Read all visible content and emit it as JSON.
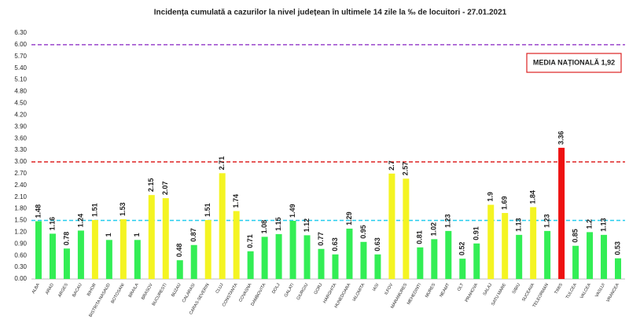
{
  "chart_data": {
    "type": "bar",
    "title": "Incidența cumulată a cazurilor la nivel județean în ultimele 14 zile la ‰ de locuitori - 27.01.2021",
    "categories": [
      "ALBA",
      "ARAD",
      "ARGES",
      "BACAU",
      "BIHOR",
      "BISTRITA NASAUD",
      "BOTOSANI",
      "BRAILA",
      "BRASOV",
      "BUCURESTI",
      "BUZAU",
      "CALARASI",
      "CARAS-SEVERIN",
      "CLUJ",
      "CONSTANTA",
      "COVASNA",
      "DAMBOVITA",
      "DOLJ",
      "GALATI",
      "GIURGIU",
      "GORJ",
      "HARGHITA",
      "HUNEDOARA",
      "IALOMITA",
      "IASI",
      "ILFOV",
      "MARAMURES",
      "MEHEDINTI",
      "MURES",
      "NEAMT",
      "OLT",
      "PRAHOVA",
      "SALAJ",
      "SATU MARE",
      "SIBIU",
      "SUCEAVA",
      "TELEORMAN",
      "TIMIS",
      "TULCEA",
      "VALCEA",
      "VASLUI",
      "VRANCEA"
    ],
    "values": [
      1.48,
      1.16,
      0.78,
      1.24,
      1.51,
      1,
      1.53,
      1,
      2.15,
      2.07,
      0.48,
      0.87,
      1.51,
      2.71,
      1.74,
      0.71,
      1.08,
      1.15,
      1.49,
      1.12,
      0.77,
      0.63,
      1.29,
      0.95,
      0.63,
      2.7,
      2.57,
      0.81,
      1.02,
      1.23,
      0.52,
      0.91,
      1.9,
      1.69,
      1.13,
      1.84,
      1.23,
      3.36,
      0.85,
      1.2,
      1.13,
      0.53
    ],
    "colors": [
      "#33ee55",
      "#33ee55",
      "#33ee55",
      "#33ee55",
      "#f4f422",
      "#33ee55",
      "#f4f422",
      "#33ee55",
      "#f4f422",
      "#f4f422",
      "#33ee55",
      "#33ee55",
      "#f4f422",
      "#f4f422",
      "#f4f422",
      "#33ee55",
      "#33ee55",
      "#33ee55",
      "#33ee55",
      "#33ee55",
      "#33ee55",
      "#33ee55",
      "#33ee55",
      "#33ee55",
      "#33ee55",
      "#f4f422",
      "#f4f422",
      "#33ee55",
      "#33ee55",
      "#33ee55",
      "#33ee55",
      "#33ee55",
      "#f4f422",
      "#f4f422",
      "#33ee55",
      "#f4f422",
      "#33ee55",
      "#ee1111",
      "#33ee55",
      "#33ee55",
      "#33ee55",
      "#33ee55"
    ],
    "ylim": [
      0,
      6.3
    ],
    "yticks": [
      {
        "value": 0,
        "label": "0.00"
      },
      {
        "value": 0.3,
        "label": "0.30"
      },
      {
        "value": 0.6,
        "label": "0.60"
      },
      {
        "value": 0.9,
        "label": "0.90"
      },
      {
        "value": 1.2,
        "label": "1.20"
      },
      {
        "value": 1.5,
        "label": "1.50"
      },
      {
        "value": 1.8,
        "label": "1.80"
      },
      {
        "value": 2.1,
        "label": "2.10"
      },
      {
        "value": 2.4,
        "label": "2.40"
      },
      {
        "value": 2.7,
        "label": "2.70"
      },
      {
        "value": 3,
        "label": "3.00"
      },
      {
        "value": 3.3,
        "label": "3.30"
      },
      {
        "value": 3.6,
        "label": "3.60"
      },
      {
        "value": 3.9,
        "label": "3.90"
      },
      {
        "value": 4.2,
        "label": "4.20"
      },
      {
        "value": 4.5,
        "label": "4.50"
      },
      {
        "value": 4.8,
        "label": "4.80"
      },
      {
        "value": 5.1,
        "label": "5.10"
      },
      {
        "value": 5.4,
        "label": "5.40"
      },
      {
        "value": 5.7,
        "label": "5.70"
      },
      {
        "value": 6,
        "label": "6.00"
      },
      {
        "value": 6.3,
        "label": "6.30"
      }
    ],
    "reference_lines": [
      {
        "value": 1.5,
        "color": "#22ccee"
      },
      {
        "value": 3,
        "color": "#dd2222"
      },
      {
        "value": 6,
        "color": "#9944cc"
      }
    ],
    "annotation": "MEDIA NAȚIONALĂ  1,92"
  }
}
